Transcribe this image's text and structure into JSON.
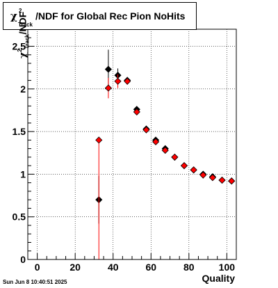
{
  "chart_data": {
    "type": "scatter",
    "title_symbol": "χ",
    "title_sup": "2",
    "title_sub": "Track",
    "title_rest": "/NDF for Global Rec Pion NoHits",
    "ylabel_symbol": "χ",
    "ylabel_sup": "2",
    "ylabel_sub": "Track",
    "ylabel_rest": "/NDF",
    "xlabel": "Quality",
    "xlim": [
      -5,
      105
    ],
    "ylim": [
      0,
      2.7
    ],
    "x_ticks": [
      0,
      20,
      40,
      60,
      80,
      100
    ],
    "y_ticks": [
      0,
      0.5,
      1,
      1.5,
      2,
      2.5
    ],
    "x_tick_labels": [
      "0",
      "20",
      "40",
      "60",
      "80",
      "100"
    ],
    "y_tick_labels": [
      "0",
      "0.5",
      "1",
      "1.5",
      "2",
      "2.5"
    ],
    "grid": true,
    "series": [
      {
        "color": "#000000",
        "x": [
          32.5,
          37.5,
          42.5,
          47.5,
          52.5,
          57.5,
          62.5,
          67.5,
          72.5,
          77.5,
          82.5,
          87.5,
          92.5,
          97.5,
          102.5
        ],
        "y": [
          0.7,
          2.23,
          2.16,
          2.1,
          1.76,
          1.53,
          1.4,
          1.3,
          1.2,
          1.1,
          1.05,
          1.0,
          0.97,
          0.93,
          0.92
        ],
        "err": [
          0.28,
          0.23,
          0.08,
          0.04,
          0.02,
          0.02,
          0.02,
          0.02,
          0.01,
          0.01,
          0.01,
          0.01,
          0.01,
          0.01,
          0.01
        ]
      },
      {
        "color": "#ff0000",
        "x": [
          32.5,
          37.5,
          42.5,
          47.5,
          52.5,
          57.5,
          62.5,
          67.5,
          72.5,
          77.5,
          82.5,
          87.5,
          92.5,
          97.5,
          102.5
        ],
        "y": [
          1.4,
          2.01,
          2.09,
          2.09,
          1.73,
          1.52,
          1.38,
          1.28,
          1.2,
          1.1,
          1.05,
          0.99,
          0.96,
          0.93,
          0.92
        ],
        "err": [
          0.0,
          0.12,
          0.08,
          0.04,
          0.02,
          0.02,
          0.02,
          0.02,
          0.01,
          0.01,
          0.01,
          0.01,
          0.01,
          0.01,
          0.01
        ],
        "err_low": [
          1.4,
          0.12,
          0.08,
          0.04,
          0.02,
          0.02,
          0.02,
          0.02,
          0.01,
          0.01,
          0.01,
          0.01,
          0.01,
          0.01,
          0.01
        ],
        "err_high": [
          0.0,
          0.12,
          0.08,
          0.04,
          0.02,
          0.02,
          0.02,
          0.02,
          0.01,
          0.01,
          0.01,
          0.01,
          0.01,
          0.01,
          0.01
        ]
      }
    ]
  },
  "timestamp": "Sun Jun  8 10:40:51 2025"
}
